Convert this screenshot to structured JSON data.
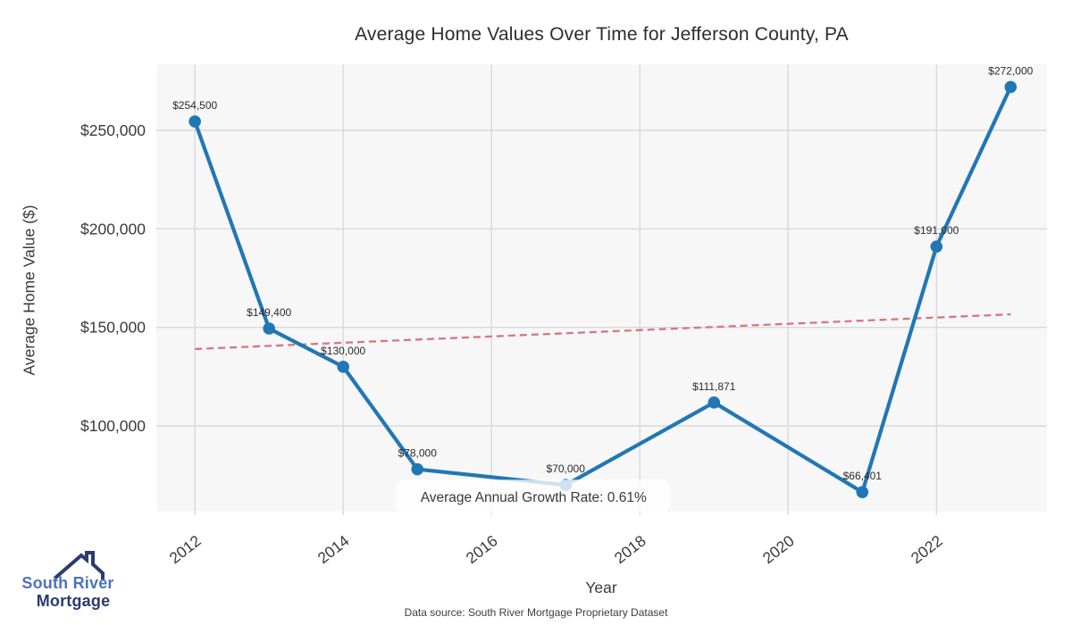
{
  "chart_data": {
    "type": "line",
    "title": "Average Home Values Over Time for Jefferson County, PA",
    "xlabel": "Year",
    "ylabel": "Average Home Value ($)",
    "x": [
      2012,
      2013,
      2014,
      2015,
      2017,
      2019,
      2021,
      2022,
      2023
    ],
    "values": [
      254500,
      149400,
      130000,
      78000,
      70000,
      111871,
      66401,
      191000,
      272000
    ],
    "point_labels": [
      "$254,500",
      "$149,400",
      "$130,000",
      "$78,000",
      "$70,000",
      "$111,871",
      "$66,401",
      "$191,000",
      "$272,000"
    ],
    "xlim": [
      2011.48,
      2023.49
    ],
    "ylim": [
      56500,
      283500
    ],
    "xticks": [
      2012,
      2014,
      2016,
      2018,
      2020,
      2022
    ],
    "xtick_labels": [
      "2012",
      "2014",
      "2016",
      "2018",
      "2020",
      "2022"
    ],
    "yticks": [
      100000,
      150000,
      200000,
      250000
    ],
    "ytick_labels": [
      "$100,000",
      "$150,000",
      "$200,000",
      "$250,000"
    ],
    "grid": true,
    "legend_position": "none",
    "line_color": "#2077b4",
    "marker": "circle",
    "plot_bg": "#f7f7f8",
    "grid_color": "#d9d9d9",
    "text_color": "#3a3a3a",
    "trend": {
      "style": "dashed",
      "color": "#d4777e",
      "x": [
        2012,
        2023
      ],
      "values": [
        139000,
        156600
      ]
    },
    "annotation": {
      "text": "Average Annual Growth Rate: 0.61%"
    }
  },
  "footer": {
    "source": "Data source: South River Mortgage Proprietary Dataset"
  },
  "logo": {
    "line1": "South River",
    "line2": "Mortgage",
    "blue": "#4d72bd",
    "navy": "#2c3a72"
  }
}
